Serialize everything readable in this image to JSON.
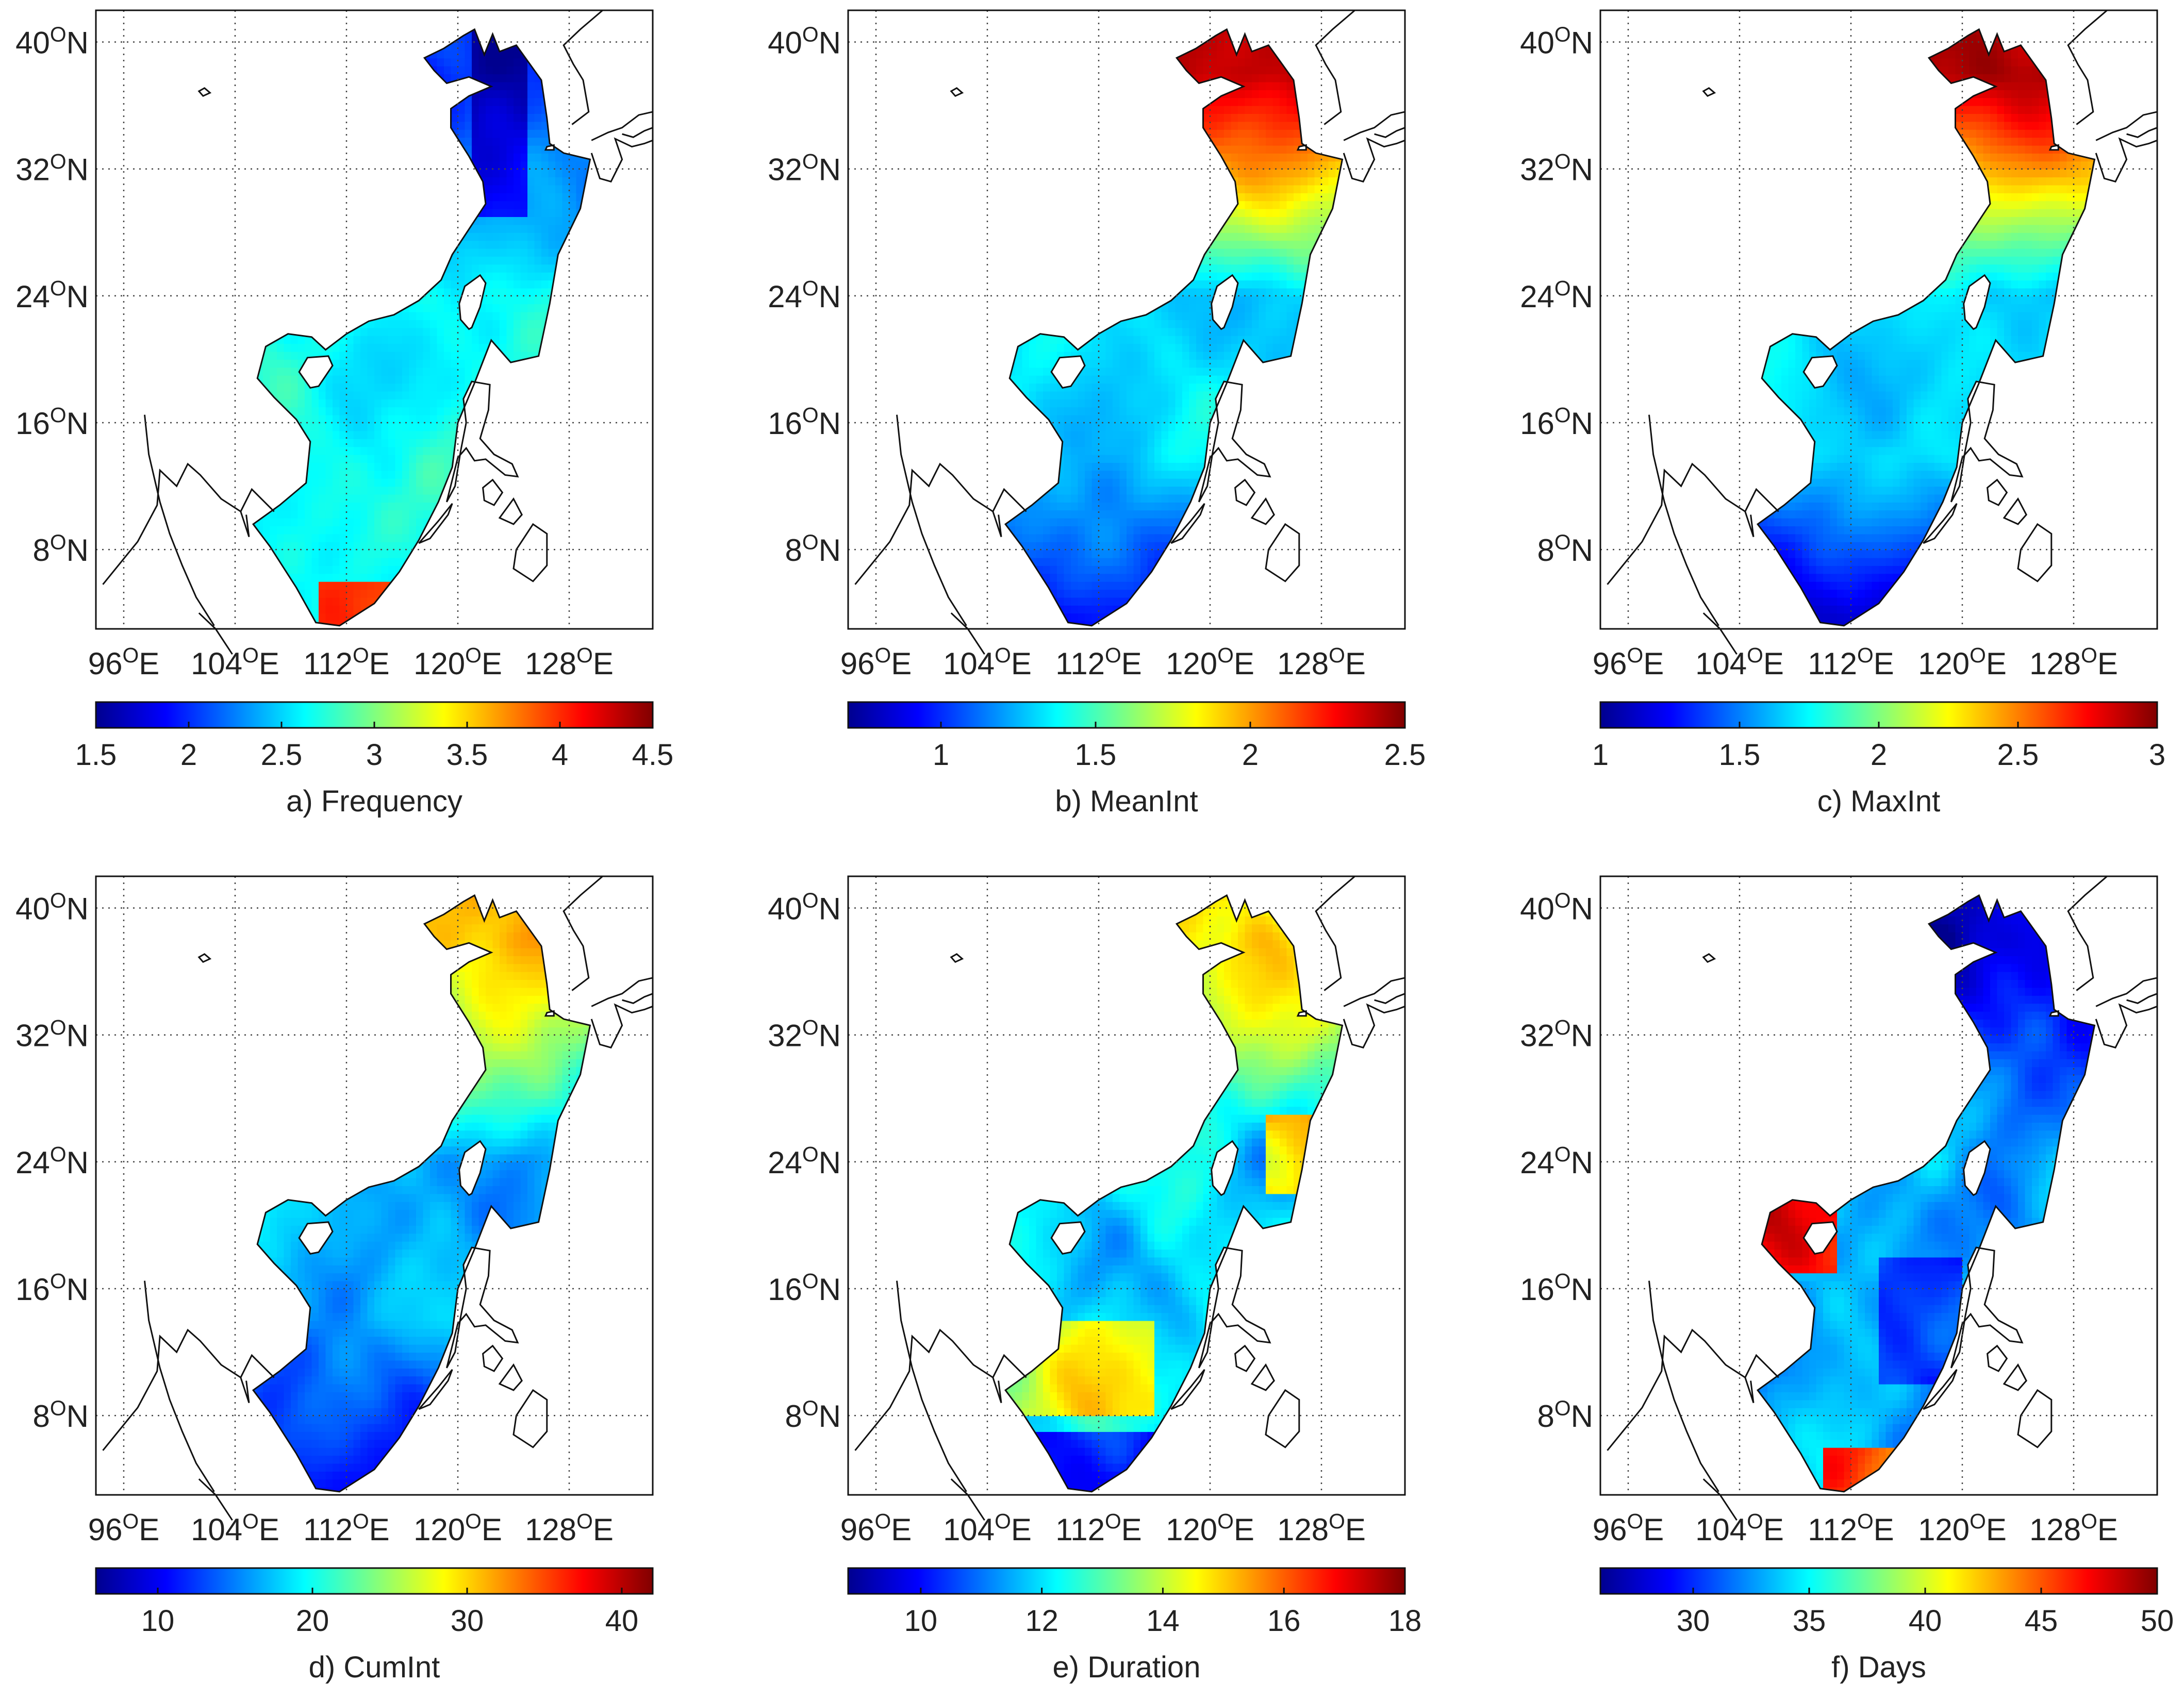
{
  "figure": {
    "description_panels": 6,
    "lon_ticks": [
      "96°E",
      "104°E",
      "112°E",
      "120°E",
      "128°E"
    ],
    "lat_ticks": [
      "8°N",
      "16°N",
      "24°N",
      "32°N",
      "40°N"
    ]
  },
  "chart_data": [
    {
      "type": "heatmap",
      "panel": "a",
      "title": "a) Frequency",
      "colorbar": {
        "min": 1.5,
        "max": 4.5,
        "ticks": [
          "1.5",
          "2",
          "2.5",
          "3",
          "3.5",
          "4",
          "4.5"
        ]
      },
      "axes": {
        "lon_range": [
          94,
          134
        ],
        "lat_range": [
          3,
          42
        ]
      }
    },
    {
      "type": "heatmap",
      "panel": "b",
      "title": "b) MeanInt",
      "colorbar": {
        "min": 0.7,
        "max": 2.5,
        "ticks": [
          "1",
          "1.5",
          "2",
          "2.5"
        ]
      },
      "axes": {
        "lon_range": [
          94,
          134
        ],
        "lat_range": [
          3,
          42
        ]
      }
    },
    {
      "type": "heatmap",
      "panel": "c",
      "title": "c) MaxInt",
      "colorbar": {
        "min": 1,
        "max": 3,
        "ticks": [
          "1",
          "1.5",
          "2",
          "2.5",
          "3"
        ]
      },
      "axes": {
        "lon_range": [
          94,
          134
        ],
        "lat_range": [
          3,
          42
        ]
      }
    },
    {
      "type": "heatmap",
      "panel": "d",
      "title": "d) CumInt",
      "colorbar": {
        "min": 6,
        "max": 42,
        "ticks": [
          "10",
          "20",
          "30",
          "40"
        ]
      },
      "axes": {
        "lon_range": [
          94,
          134
        ],
        "lat_range": [
          3,
          42
        ]
      }
    },
    {
      "type": "heatmap",
      "panel": "e",
      "title": "e) Duration",
      "colorbar": {
        "min": 8.8,
        "max": 18,
        "ticks": [
          "10",
          "12",
          "14",
          "16",
          "18"
        ]
      },
      "axes": {
        "lon_range": [
          94,
          134
        ],
        "lat_range": [
          3,
          42
        ]
      }
    },
    {
      "type": "heatmap",
      "panel": "f",
      "title": "f) Days",
      "colorbar": {
        "min": 26,
        "max": 50,
        "ticks": [
          "30",
          "35",
          "40",
          "45",
          "50"
        ]
      },
      "axes": {
        "lon_range": [
          94,
          134
        ],
        "lat_range": [
          3,
          42
        ]
      }
    }
  ]
}
